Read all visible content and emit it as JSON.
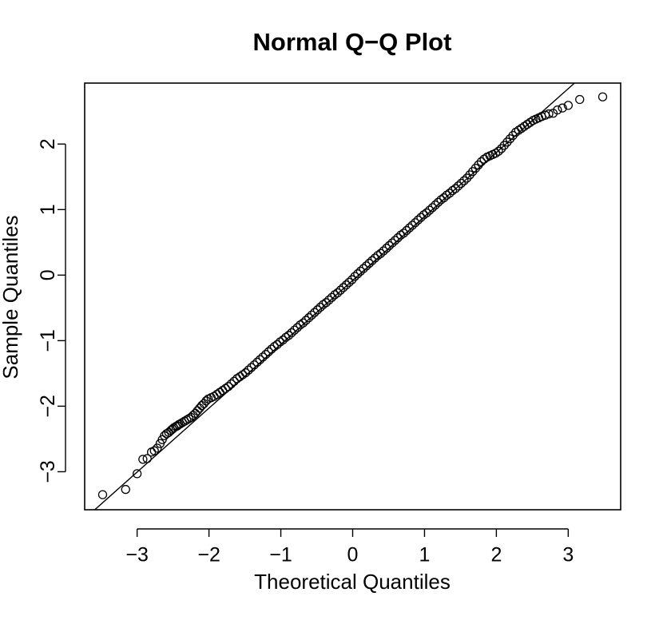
{
  "chart_data": {
    "type": "scatter",
    "title": "Normal Q−Q Plot",
    "xlabel": "Theoretical Quantiles",
    "ylabel": "Sample Quantiles",
    "xlim": [
      -3.73,
      3.73
    ],
    "ylim": [
      -3.58,
      2.93
    ],
    "x_ticks": [
      -3,
      -2,
      -1,
      0,
      1,
      2,
      3
    ],
    "x_tick_labels": [
      "−3",
      "−2",
      "−1",
      "0",
      "1",
      "2",
      "3"
    ],
    "y_ticks": [
      -3,
      -2,
      -1,
      0,
      1,
      2
    ],
    "y_tick_labels": [
      "−3",
      "−2",
      "−1",
      "0",
      "1",
      "2"
    ],
    "grid": false,
    "legend": "none",
    "colors": {
      "points": "#000000",
      "line": "#000000",
      "frame": "#000000",
      "background": "#ffffff"
    },
    "reference_line": {
      "intercept": -0.08,
      "slope": 0.975
    },
    "series": [
      {
        "marker": "open-circle",
        "points": [
          [
            -3.48,
            -3.35
          ],
          [
            -3.16,
            -3.27
          ],
          [
            -3.0,
            -3.03
          ],
          [
            -2.92,
            -2.81
          ],
          [
            -2.86,
            -2.8
          ],
          [
            -2.8,
            -2.7
          ],
          [
            -2.76,
            -2.68
          ],
          [
            -2.72,
            -2.64
          ],
          [
            -2.68,
            -2.57
          ],
          [
            -2.65,
            -2.51
          ],
          [
            -2.62,
            -2.45
          ],
          [
            -2.59,
            -2.42
          ],
          [
            -2.56,
            -2.4
          ],
          [
            -2.53,
            -2.37
          ],
          [
            -2.51,
            -2.35
          ],
          [
            -2.49,
            -2.33
          ],
          [
            -2.46,
            -2.31
          ],
          [
            -2.44,
            -2.3
          ],
          [
            -2.42,
            -2.28
          ],
          [
            -2.4,
            -2.27
          ],
          [
            -2.37,
            -2.25
          ],
          [
            -2.34,
            -2.23
          ],
          [
            -2.31,
            -2.21
          ],
          [
            -2.28,
            -2.19
          ],
          [
            -2.25,
            -2.17
          ],
          [
            -2.22,
            -2.14
          ],
          [
            -2.19,
            -2.11
          ],
          [
            -2.16,
            -2.07
          ],
          [
            -2.13,
            -2.03
          ],
          [
            -2.1,
            -1.99
          ],
          [
            -2.07,
            -1.96
          ],
          [
            -2.04,
            -1.92
          ],
          [
            -2.01,
            -1.89
          ],
          [
            -1.97,
            -1.87
          ],
          [
            -1.93,
            -1.85
          ],
          [
            -1.89,
            -1.82
          ],
          [
            -1.85,
            -1.79
          ],
          [
            -1.81,
            -1.76
          ],
          [
            -1.77,
            -1.73
          ],
          [
            -1.73,
            -1.7
          ],
          [
            -1.69,
            -1.66
          ],
          [
            -1.65,
            -1.62
          ],
          [
            -1.61,
            -1.58
          ],
          [
            -1.57,
            -1.55
          ],
          [
            -1.53,
            -1.52
          ],
          [
            -1.49,
            -1.49
          ],
          [
            -1.45,
            -1.45
          ],
          [
            -1.41,
            -1.41
          ],
          [
            -1.37,
            -1.37
          ],
          [
            -1.33,
            -1.33
          ],
          [
            -1.29,
            -1.29
          ],
          [
            -1.25,
            -1.25
          ],
          [
            -1.21,
            -1.21
          ],
          [
            -1.17,
            -1.17
          ],
          [
            -1.13,
            -1.13
          ],
          [
            -1.09,
            -1.09
          ],
          [
            -1.05,
            -1.06
          ],
          [
            -1.01,
            -1.02
          ],
          [
            -0.97,
            -0.99
          ],
          [
            -0.93,
            -0.95
          ],
          [
            -0.89,
            -0.92
          ],
          [
            -0.85,
            -0.88
          ],
          [
            -0.81,
            -0.84
          ],
          [
            -0.77,
            -0.8
          ],
          [
            -0.73,
            -0.76
          ],
          [
            -0.69,
            -0.73
          ],
          [
            -0.65,
            -0.69
          ],
          [
            -0.61,
            -0.65
          ],
          [
            -0.57,
            -0.61
          ],
          [
            -0.53,
            -0.57
          ],
          [
            -0.49,
            -0.53
          ],
          [
            -0.45,
            -0.49
          ],
          [
            -0.41,
            -0.45
          ],
          [
            -0.37,
            -0.42
          ],
          [
            -0.33,
            -0.38
          ],
          [
            -0.29,
            -0.34
          ],
          [
            -0.25,
            -0.3
          ],
          [
            -0.21,
            -0.27
          ],
          [
            -0.17,
            -0.23
          ],
          [
            -0.13,
            -0.19
          ],
          [
            -0.09,
            -0.15
          ],
          [
            -0.05,
            -0.11
          ],
          [
            -0.01,
            -0.07
          ],
          [
            0.03,
            -0.02
          ],
          [
            0.07,
            0.02
          ],
          [
            0.11,
            0.06
          ],
          [
            0.15,
            0.1
          ],
          [
            0.19,
            0.14
          ],
          [
            0.23,
            0.18
          ],
          [
            0.27,
            0.22
          ],
          [
            0.31,
            0.26
          ],
          [
            0.35,
            0.3
          ],
          [
            0.39,
            0.33
          ],
          [
            0.43,
            0.37
          ],
          [
            0.47,
            0.41
          ],
          [
            0.51,
            0.45
          ],
          [
            0.55,
            0.49
          ],
          [
            0.59,
            0.53
          ],
          [
            0.63,
            0.57
          ],
          [
            0.67,
            0.61
          ],
          [
            0.71,
            0.64
          ],
          [
            0.75,
            0.68
          ],
          [
            0.79,
            0.72
          ],
          [
            0.83,
            0.76
          ],
          [
            0.87,
            0.8
          ],
          [
            0.91,
            0.84
          ],
          [
            0.95,
            0.88
          ],
          [
            0.99,
            0.92
          ],
          [
            1.03,
            0.95
          ],
          [
            1.07,
            0.99
          ],
          [
            1.11,
            1.03
          ],
          [
            1.15,
            1.07
          ],
          [
            1.19,
            1.11
          ],
          [
            1.23,
            1.15
          ],
          [
            1.27,
            1.18
          ],
          [
            1.31,
            1.22
          ],
          [
            1.35,
            1.25
          ],
          [
            1.39,
            1.29
          ],
          [
            1.43,
            1.32
          ],
          [
            1.47,
            1.36
          ],
          [
            1.51,
            1.4
          ],
          [
            1.55,
            1.44
          ],
          [
            1.59,
            1.48
          ],
          [
            1.63,
            1.53
          ],
          [
            1.67,
            1.58
          ],
          [
            1.71,
            1.63
          ],
          [
            1.75,
            1.68
          ],
          [
            1.79,
            1.73
          ],
          [
            1.83,
            1.77
          ],
          [
            1.87,
            1.8
          ],
          [
            1.91,
            1.82
          ],
          [
            1.95,
            1.84
          ],
          [
            1.99,
            1.86
          ],
          [
            2.03,
            1.89
          ],
          [
            2.07,
            1.93
          ],
          [
            2.11,
            1.98
          ],
          [
            2.15,
            2.03
          ],
          [
            2.19,
            2.08
          ],
          [
            2.23,
            2.13
          ],
          [
            2.27,
            2.18
          ],
          [
            2.31,
            2.21
          ],
          [
            2.35,
            2.24
          ],
          [
            2.39,
            2.27
          ],
          [
            2.43,
            2.3
          ],
          [
            2.47,
            2.33
          ],
          [
            2.51,
            2.36
          ],
          [
            2.55,
            2.38
          ],
          [
            2.59,
            2.4
          ],
          [
            2.63,
            2.42
          ],
          [
            2.68,
            2.44
          ],
          [
            2.73,
            2.46
          ],
          [
            2.79,
            2.47
          ],
          [
            2.85,
            2.52
          ],
          [
            2.92,
            2.55
          ],
          [
            3.0,
            2.59
          ],
          [
            3.16,
            2.68
          ],
          [
            3.48,
            2.72
          ]
        ]
      }
    ]
  }
}
